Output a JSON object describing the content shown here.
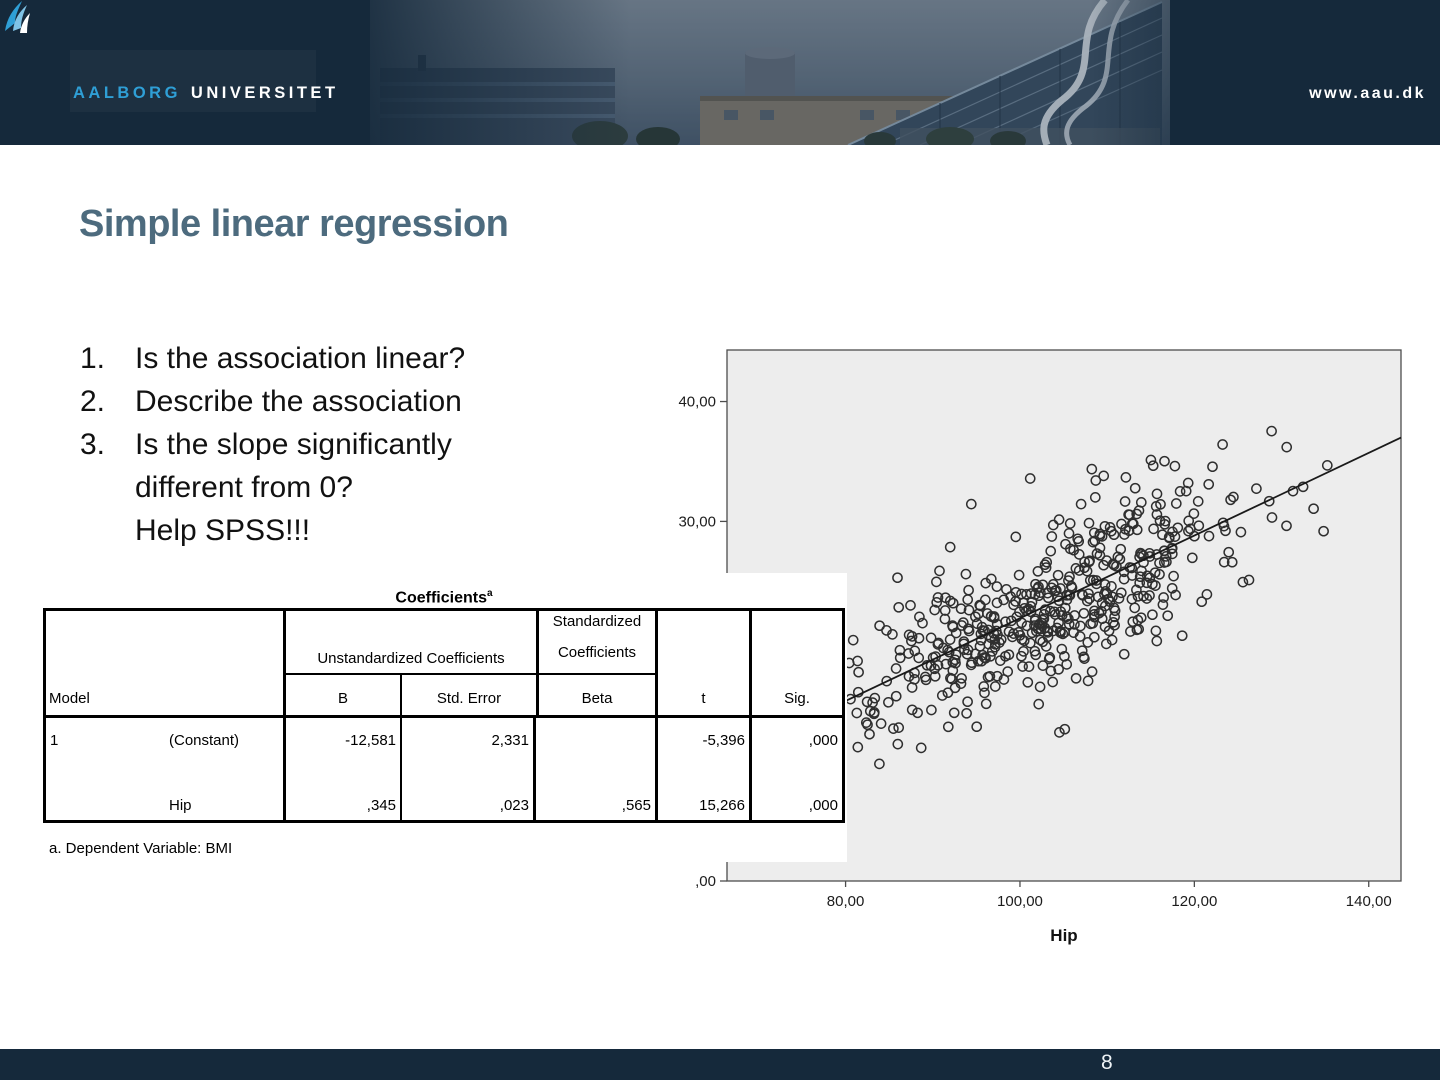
{
  "header": {
    "logo": {
      "word1": "AALBORG",
      "word2": "UNIVERSITET"
    },
    "website": "www.aau.dk",
    "navy": "#15293b",
    "logo_blue": "#2f9fd6"
  },
  "slide": {
    "title": "Simple linear regression",
    "title_color": "#4d6b7e",
    "list": [
      {
        "marker": "1.",
        "lines": [
          "Is the association linear?"
        ]
      },
      {
        "marker": "2.",
        "lines": [
          "Describe the association"
        ]
      },
      {
        "marker": "3.",
        "lines": [
          "Is the slope significantly",
          "different from 0?",
          "Help SPSS!!!"
        ]
      }
    ]
  },
  "coefficients_table": {
    "title": "Coefficients",
    "title_superscript": "a",
    "group_headers": {
      "unstandardized": "Unstandardized Coefficients",
      "standardized": [
        "Standardized",
        "Coefficients"
      ]
    },
    "columns": {
      "model": "Model",
      "b": "B",
      "std_error": "Std. Error",
      "beta": "Beta",
      "t": "t",
      "sig": "Sig."
    },
    "rows": [
      {
        "model_no": "1",
        "predictor": "(Constant)",
        "b": "-12,581",
        "std_error": "2,331",
        "beta": "",
        "t": "-5,396",
        "sig": ",000"
      },
      {
        "model_no": "",
        "predictor": "Hip",
        "b": ",345",
        "std_error": ",023",
        "beta": ",565",
        "t": "15,266",
        "sig": ",000"
      }
    ],
    "footnote": "a. Dependent Variable: BMI"
  },
  "chart_data": {
    "type": "scatter",
    "title": "",
    "xlabel": "Hip",
    "ylabel": "",
    "x_domain": [
      66.4,
      143.7
    ],
    "y_domain": [
      0,
      44.3
    ],
    "x_ticks": [
      {
        "value": 80,
        "label": "80,00"
      },
      {
        "value": 100,
        "label": "100,00"
      },
      {
        "value": 120,
        "label": "120,00"
      },
      {
        "value": 140,
        "label": "140,00"
      }
    ],
    "y_ticks": [
      {
        "value": 0,
        "label": ",00"
      },
      {
        "value": 30,
        "label": "30,00"
      },
      {
        "value": 40,
        "label": "40,00"
      }
    ],
    "grid": false,
    "legend": "none",
    "regression_line": {
      "intercept": -12.581,
      "slope": 0.345
    },
    "point_cloud": {
      "n": 520,
      "seed": 7,
      "hip_mean": 103.5,
      "hip_sd": 10.5,
      "residual_sd": 3.5,
      "hip_range": [
        77,
        136.5
      ],
      "bmi_range": [
        3.2,
        39.3
      ]
    },
    "style": {
      "plot_bg": "#ededed",
      "frame": "#4d4d4d",
      "point_stroke": "#2f2f2f",
      "line_color": "#1a1a1a",
      "point_radius": 4.6
    }
  },
  "footer": {
    "page_number": "8"
  }
}
